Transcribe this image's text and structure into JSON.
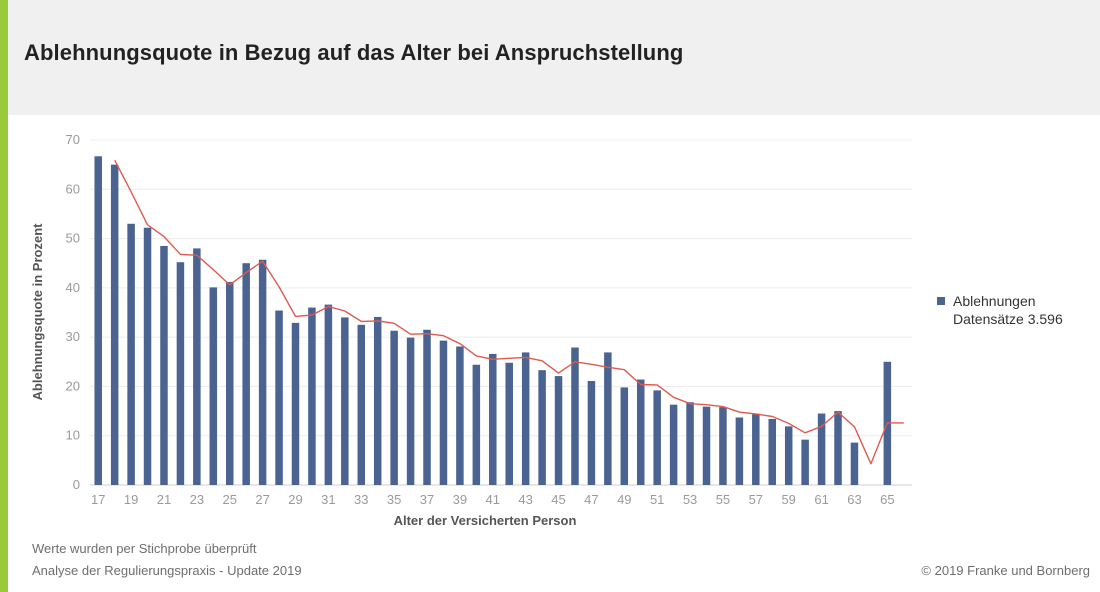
{
  "page": {
    "title": "Ablehnungsquote in Bezug auf das Alter bei Anspruchstellung",
    "accent_color": "#9bc93c"
  },
  "legend": {
    "series_label": "Ablehnungen",
    "datasets_label": "Datensätze  3.596"
  },
  "footer": {
    "note1": "Werte wurden per Stichprobe überprüft",
    "note2": "Analyse der Regulierungspraxis - Update 2019",
    "copyright": "© 2019 Franke und Bornberg"
  },
  "chart_data": {
    "type": "bar",
    "title": "",
    "xlabel": "Alter der Versicherten Person",
    "ylabel": "Ablehnungsquote in Prozent",
    "ylim": [
      0,
      70
    ],
    "yticks": [
      0,
      10,
      20,
      30,
      40,
      50,
      60,
      70
    ],
    "xlim": [
      16.5,
      66.5
    ],
    "xtick_labels": [
      17,
      19,
      21,
      23,
      25,
      27,
      29,
      31,
      33,
      35,
      37,
      39,
      41,
      43,
      45,
      47,
      49,
      51,
      53,
      55,
      57,
      59,
      61,
      63,
      65
    ],
    "grid": true,
    "legend_position": "right",
    "bar_color": "#4a6390",
    "line_color": "#e05a4f",
    "series": [
      {
        "name": "Ablehnungen",
        "x": [
          17,
          18,
          19,
          20,
          21,
          22,
          23,
          24,
          25,
          26,
          27,
          28,
          29,
          30,
          31,
          32,
          33,
          34,
          35,
          36,
          37,
          38,
          39,
          40,
          41,
          42,
          43,
          44,
          45,
          46,
          47,
          48,
          49,
          50,
          51,
          52,
          53,
          54,
          55,
          56,
          57,
          58,
          59,
          60,
          61,
          62,
          63,
          65
        ],
        "values": [
          66.7,
          65,
          53,
          52.2,
          48.5,
          45.2,
          48,
          40.1,
          41.2,
          45,
          45.7,
          35.4,
          32.9,
          36,
          36.6,
          34,
          32.5,
          34.1,
          31.3,
          29.9,
          31.5,
          29.3,
          28.1,
          24.4,
          26.6,
          24.8,
          26.9,
          23.3,
          22.1,
          27.9,
          21.1,
          26.9,
          19.8,
          21.4,
          19.2,
          16.3,
          16.8,
          15.9,
          15.8,
          13.7,
          14.5,
          13.4,
          11.9,
          9.2,
          14.5,
          15,
          8.6,
          25
        ]
      }
    ],
    "trendline": {
      "x": [
        18,
        19,
        20,
        21,
        22,
        23,
        24,
        25,
        26,
        27,
        28,
        29,
        30,
        31,
        32,
        33,
        34,
        35,
        36,
        37,
        38,
        39,
        40,
        41,
        42,
        43,
        44,
        45,
        46,
        47,
        48,
        49,
        50,
        51,
        52,
        53,
        54,
        55,
        56,
        57,
        58,
        59,
        60,
        61,
        62,
        63,
        64,
        65,
        66
      ],
      "values": [
        65.9,
        59.5,
        52.8,
        50.4,
        46.8,
        46.6,
        43.7,
        40.6,
        43.1,
        45.4,
        40.2,
        34.2,
        34.5,
        36.2,
        35.3,
        33.2,
        33.3,
        32.8,
        30.6,
        30.7,
        30.3,
        28.7,
        26.2,
        25.5,
        25.7,
        25.9,
        25.2,
        22.7,
        25,
        24.5,
        23.9,
        23.4,
        20.4,
        20.3,
        17.8,
        16.5,
        16.3,
        15.9,
        14.8,
        14.4,
        13.9,
        12.5,
        10.6,
        11.9,
        14.8,
        11.8,
        4.3,
        12.6,
        12.6
      ]
    }
  }
}
